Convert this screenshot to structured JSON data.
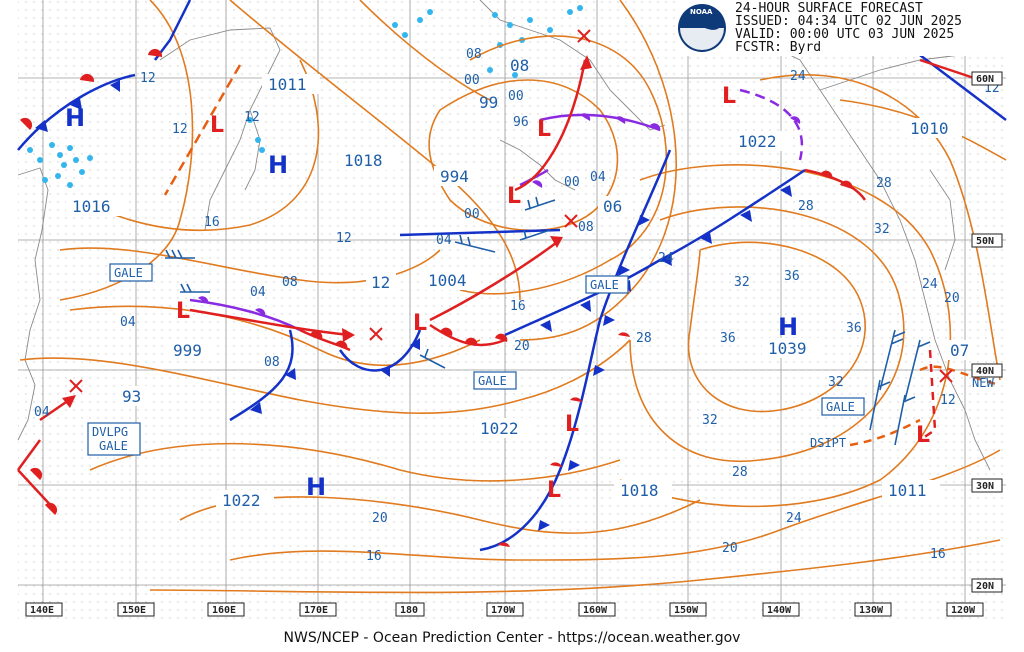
{
  "header": {
    "line1": "24-HOUR SURFACE FORECAST",
    "line2": "ISSUED: 04:34 UTC 02 JUN 2025",
    "line3": "VALID:  00:00 UTC 03 JUN 2025",
    "line4": "FCSTR:  Byrd"
  },
  "logo": {
    "text": "NOAA"
  },
  "footer": "NWS/NCEP - Ocean Prediction Center - https://ocean.weather.gov",
  "lon_ticks": [
    "140E",
    "150E",
    "160E",
    "170E",
    "180",
    "170W",
    "160W",
    "150W",
    "140W",
    "130W",
    "120W"
  ],
  "lat_ticks": [
    "60N",
    "50N",
    "40N",
    "30N",
    "20N"
  ],
  "highs": {
    "symbol": "H"
  },
  "lows": {
    "symbol": "L"
  },
  "pressures": {
    "p1011a": "1011",
    "p1018a": "1018",
    "p1016": "1016",
    "p994": "994",
    "p99": "99",
    "p1022a": "1022",
    "p1010": "1010",
    "p1004": "1004",
    "p12": "12",
    "p06": "06",
    "p999": "999",
    "p93": "93",
    "p1039": "1039",
    "p1022b": "1022",
    "p1022c": "1022",
    "p1018b": "1018",
    "p1011b": "1011",
    "p07": "07",
    "p08": "08"
  },
  "isobar_labels": [
    "12",
    "12",
    "12",
    "16",
    "12",
    "08",
    "04",
    "04",
    "08",
    "00",
    "00",
    "96",
    "04",
    "00",
    "08",
    "16",
    "20",
    "24",
    "28",
    "32",
    "36",
    "36",
    "36",
    "32",
    "28",
    "24",
    "20",
    "16",
    "28",
    "32",
    "24",
    "20",
    "24",
    "28",
    "32",
    "20",
    "16",
    "04",
    "12",
    "04",
    "00",
    "08",
    "12"
  ],
  "tags": {
    "gale1": "GALE",
    "gale2": "GALE",
    "gale3": "GALE",
    "gale4": "GALE",
    "dvlpg1": "DVLPG",
    "dvlpg2": "GALE",
    "dsipt": "DSIPT",
    "new": "NEW"
  },
  "colors": {
    "isobar": "#e07b20",
    "label": "#1f5fa8",
    "cold_front": "#1432c8",
    "warm_front": "#e02020",
    "occluded": "#8a2be2",
    "ice": "#33b5ee"
  }
}
